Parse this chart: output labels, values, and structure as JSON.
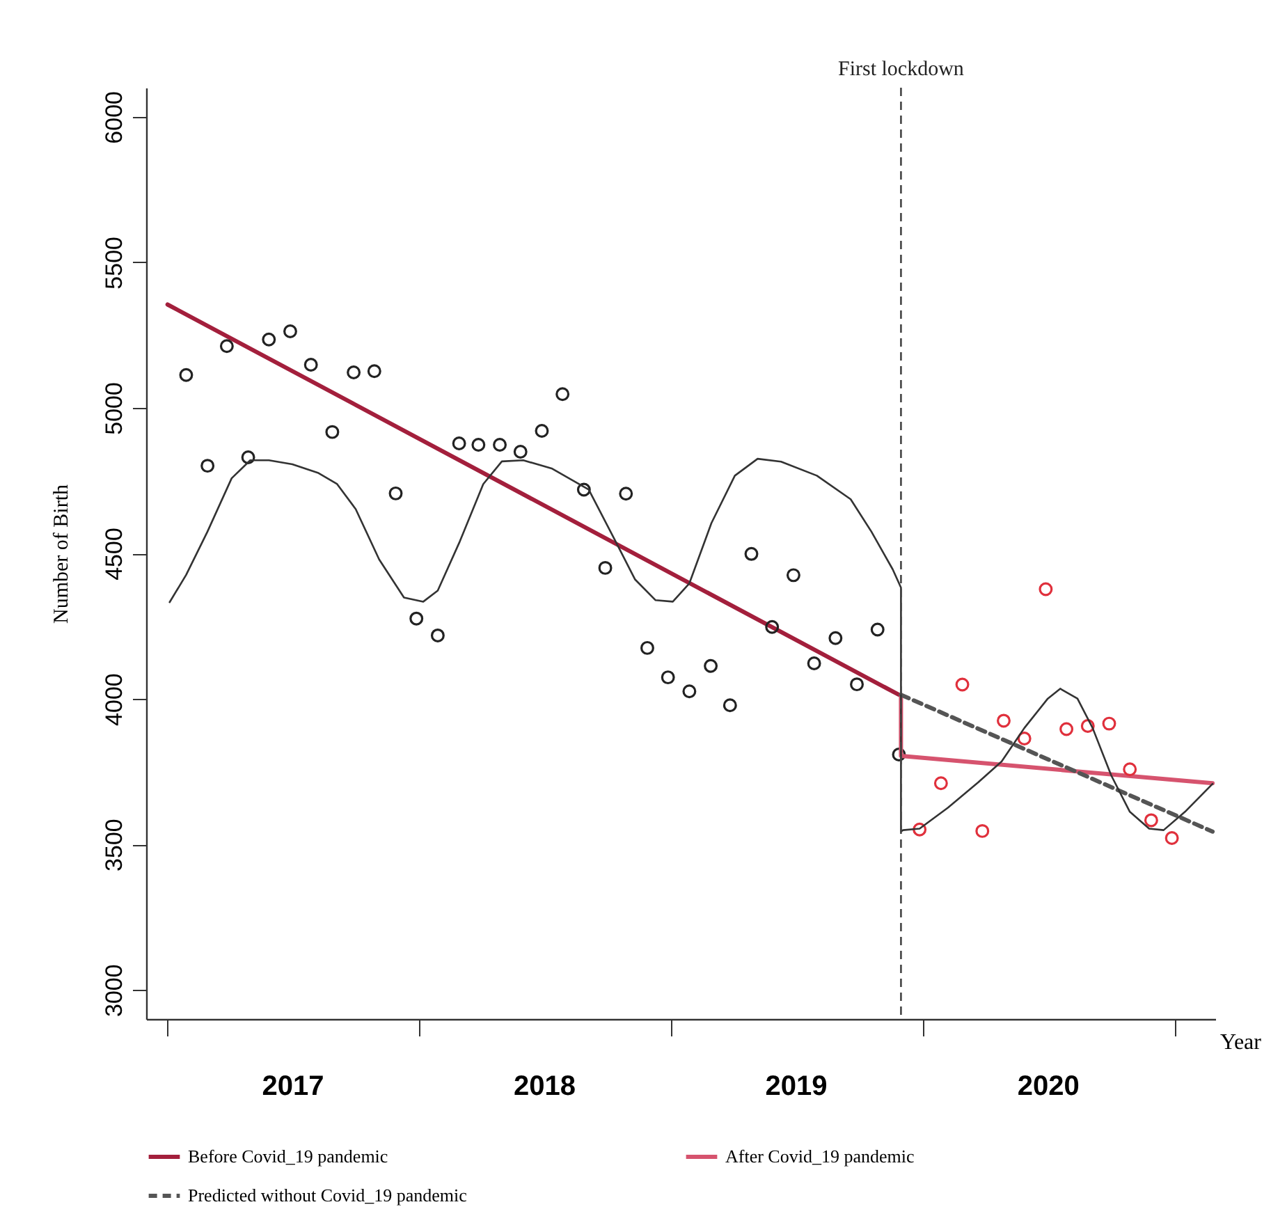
{
  "chart_data": {
    "type": "line",
    "ylabel": "Number of Birth",
    "xlabel": "Year",
    "xlim": [
      "2016-12-01",
      "2021-03-01"
    ],
    "ylim": [
      2900,
      6100
    ],
    "xticks": [
      {
        "value": "2017-01-01",
        "label": null
      },
      {
        "value": "2017-07-01",
        "label": "2017"
      },
      {
        "value": "2018-01-01",
        "label": null
      },
      {
        "value": "2018-07-01",
        "label": "2018"
      },
      {
        "value": "2019-01-01",
        "label": null
      },
      {
        "value": "2019-07-01",
        "label": "2019"
      },
      {
        "value": "2020-01-01",
        "label": null
      },
      {
        "value": "2020-07-01",
        "label": "2020"
      },
      {
        "value": "2021-01-01",
        "label": null
      }
    ],
    "yticks": [
      3000,
      3500,
      4000,
      4500,
      5000,
      5500,
      6000
    ],
    "legend": "bottom",
    "ref_lines": [
      {
        "axis": "x",
        "value": "2019-12-01",
        "label": "First lockdown",
        "color": "#444444",
        "line_style": "dashed"
      }
    ],
    "series": [
      {
        "name": "Before Covid_19 pandemic",
        "color": "#a31f3c",
        "line_style": "solid",
        "x": [
          "2017-01-01",
          "2019-11-28"
        ],
        "values": [
          5355,
          4014
        ]
      },
      {
        "type": "scatter",
        "color": "#222222",
        "marker": "circle",
        "x": [
          "2017-01-28",
          "2017-02-28",
          "2017-03-28",
          "2017-04-28",
          "2017-05-28",
          "2017-06-28",
          "2017-07-28",
          "2017-08-28",
          "2017-09-28",
          "2017-10-28",
          "2017-11-28",
          "2017-12-28",
          "2018-01-28",
          "2018-02-28",
          "2018-03-28",
          "2018-04-28",
          "2018-05-28",
          "2018-06-28",
          "2018-07-28",
          "2018-08-28",
          "2018-09-28",
          "2018-10-28",
          "2018-11-28",
          "2018-12-28",
          "2019-01-28",
          "2019-02-28",
          "2019-03-28",
          "2019-04-28",
          "2019-05-28",
          "2019-06-28",
          "2019-07-28",
          "2019-08-28",
          "2019-09-28",
          "2019-10-28",
          "2019-11-28"
        ],
        "values": [
          5113,
          4801,
          5212,
          4830,
          5235,
          5263,
          5148,
          4917,
          5122,
          5126,
          4706,
          4276,
          4218,
          4878,
          4873,
          4873,
          4849,
          4921,
          5047,
          4719,
          4450,
          4705,
          4175,
          4074,
          4026,
          4113,
          3978,
          4498,
          4247,
          4425,
          4122,
          4209,
          4050,
          4238,
          3809
        ]
      },
      {
        "name": "After Covid_19 pandemic",
        "color": "#d6536e",
        "line_style": "solid",
        "x": [
          "2019-12-01",
          "2019-12-01",
          "2021-02-25"
        ],
        "values": [
          4014,
          3804,
          3710
        ]
      },
      {
        "type": "scatter",
        "color": "#e0303c",
        "marker": "circle",
        "x": [
          "2019-12-28",
          "2020-01-28",
          "2020-02-28",
          "2020-03-28",
          "2020-04-28",
          "2020-05-28",
          "2020-06-28",
          "2020-07-28",
          "2020-08-28",
          "2020-09-28",
          "2020-10-28",
          "2020-11-28",
          "2020-12-28"
        ],
        "values": [
          3551,
          3710,
          4049,
          3546,
          3925,
          3864,
          4377,
          3896,
          3907,
          3915,
          3758,
          3583,
          3522
        ]
      },
      {
        "name": "Predicted without Covid_19 pandemic",
        "color": "#555555",
        "line_style": "dashed",
        "x": [
          "2019-12-01",
          "2021-02-25"
        ],
        "values": [
          4014,
          3544
        ]
      },
      {
        "color": "#333333",
        "line_style": "solid",
        "x": [
          "2017-01-04",
          "2017-01-28",
          "2017-02-28",
          "2017-04-04",
          "2017-05-01",
          "2017-05-28",
          "2017-07-01",
          "2017-08-07",
          "2017-09-04",
          "2017-10-01",
          "2017-11-04",
          "2017-12-10",
          "2018-01-07",
          "2018-01-28",
          "2018-03-01",
          "2018-04-04",
          "2018-05-01",
          "2018-06-01",
          "2018-07-13",
          "2018-09-04",
          "2018-10-13",
          "2018-11-10",
          "2018-12-10",
          "2019-01-04",
          "2019-01-28",
          "2019-03-01",
          "2019-04-04",
          "2019-05-07",
          "2019-06-10",
          "2019-08-01",
          "2019-09-19",
          "2019-10-19",
          "2019-11-19",
          "2019-12-01",
          "2019-12-01",
          "2019-12-04",
          "2019-12-28",
          "2020-02-07",
          "2020-03-22",
          "2020-04-25",
          "2020-05-28",
          "2020-07-01",
          "2020-07-19",
          "2020-08-13",
          "2020-09-04",
          "2020-10-01",
          "2020-10-28",
          "2020-11-25",
          "2020-12-16",
          "2021-01-16",
          "2021-02-25"
        ],
        "values": [
          4332,
          4426,
          4575,
          4758,
          4820,
          4820,
          4806,
          4777,
          4738,
          4652,
          4479,
          4348,
          4334,
          4372,
          4541,
          4738,
          4816,
          4820,
          4791,
          4719,
          4541,
          4411,
          4339,
          4334,
          4397,
          4604,
          4767,
          4825,
          4815,
          4767,
          4686,
          4575,
          4445,
          4382,
          3544,
          3549,
          3554,
          3626,
          3713,
          3785,
          3900,
          4001,
          4035,
          4001,
          3900,
          3737,
          3612,
          3554,
          3549,
          3612,
          3708
        ]
      }
    ]
  }
}
